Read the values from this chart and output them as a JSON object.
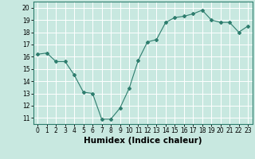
{
  "x": [
    0,
    1,
    2,
    3,
    4,
    5,
    6,
    7,
    8,
    9,
    10,
    11,
    12,
    13,
    14,
    15,
    16,
    17,
    18,
    19,
    20,
    21,
    22,
    23
  ],
  "y": [
    16.2,
    16.3,
    15.6,
    15.6,
    14.5,
    13.1,
    13.0,
    10.9,
    10.9,
    11.8,
    13.4,
    15.7,
    17.2,
    17.4,
    18.8,
    19.2,
    19.3,
    19.5,
    19.8,
    19.0,
    18.8,
    18.8,
    18.0,
    18.5
  ],
  "xlim": [
    -0.5,
    23.5
  ],
  "ylim": [
    10.5,
    20.5
  ],
  "yticks": [
    11,
    12,
    13,
    14,
    15,
    16,
    17,
    18,
    19,
    20
  ],
  "xticks": [
    0,
    1,
    2,
    3,
    4,
    5,
    6,
    7,
    8,
    9,
    10,
    11,
    12,
    13,
    14,
    15,
    16,
    17,
    18,
    19,
    20,
    21,
    22,
    23
  ],
  "xlabel": "Humidex (Indice chaleur)",
  "line_color": "#2e7d6e",
  "marker": "D",
  "marker_size": 2,
  "background_color": "#c8e8e0",
  "grid_color": "#ffffff",
  "tick_fontsize": 5.5,
  "xlabel_fontsize": 7.5
}
